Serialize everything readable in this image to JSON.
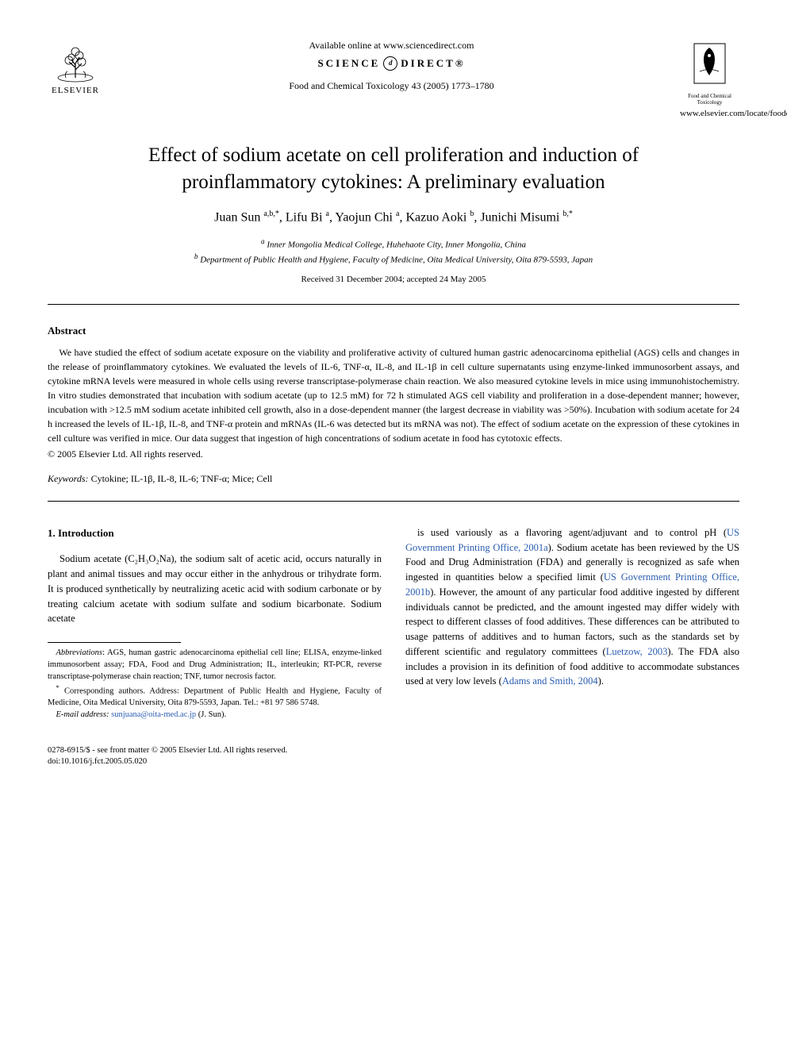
{
  "header": {
    "publisher": "ELSEVIER",
    "available_online": "Available online at www.sciencedirect.com",
    "science_direct_left": "SCIENCE",
    "science_direct_right": "DIRECT®",
    "citation": "Food and Chemical Toxicology 43 (2005) 1773–1780",
    "journal_small_name": "Food and Chemical Toxicology",
    "journal_url": "www.elsevier.com/locate/foodchemtox"
  },
  "title": "Effect of sodium acetate on cell proliferation and induction of proinflammatory cytokines: A preliminary evaluation",
  "authors_html": "Juan Sun <sup>a,b,*</sup>, Lifu Bi <sup>a</sup>, Yaojun Chi <sup>a</sup>, Kazuo Aoki <sup>b</sup>, Junichi Misumi <sup>b,*</sup>",
  "affiliations": {
    "a": "Inner Mongolia Medical College, Huhehaote City, Inner Mongolia, China",
    "b": "Department of Public Health and Hygiene, Faculty of Medicine, Oita Medical University, Oita 879-5593, Japan"
  },
  "dates": "Received 31 December 2004; accepted 24 May 2005",
  "abstract": {
    "heading": "Abstract",
    "text": "We have studied the effect of sodium acetate exposure on the viability and proliferative activity of cultured human gastric adenocarcinoma epithelial (AGS) cells and changes in the release of proinflammatory cytokines. We evaluated the levels of IL-6, TNF-α, IL-8, and IL-1β in cell culture supernatants using enzyme-linked immunosorbent assays, and cytokine mRNA levels were measured in whole cells using reverse transcriptase-polymerase chain reaction. We also measured cytokine levels in mice using immunohistochemistry. In vitro studies demonstrated that incubation with sodium acetate (up to 12.5 mM) for 72 h stimulated AGS cell viability and proliferation in a dose-dependent manner; however, incubation with >12.5 mM sodium acetate inhibited cell growth, also in a dose-dependent manner (the largest decrease in viability was >50%). Incubation with sodium acetate for 24 h increased the levels of IL-1β, IL-8, and TNF-α protein and mRNAs (IL-6 was detected but its mRNA was not). The effect of sodium acetate on the expression of these cytokines in cell culture was verified in mice. Our data suggest that ingestion of high concentrations of sodium acetate in food has cytotoxic effects.",
    "copyright": "© 2005 Elsevier Ltd. All rights reserved."
  },
  "keywords": {
    "label": "Keywords:",
    "text": "Cytokine; IL-1β, IL-8, IL-6; TNF-α; Mice; Cell"
  },
  "introduction": {
    "heading": "1. Introduction",
    "left_para": "Sodium acetate (C₂H₃O₂Na), the sodium salt of acetic acid, occurs naturally in plant and animal tissues and may occur either in the anhydrous or trihydrate form. It is produced synthetically by neutralizing acetic acid with sodium carbonate or by treating calcium acetate with sodium sulfate and sodium bicarbonate. Sodium acetate",
    "right_para_parts": [
      "is used variously as a flavoring agent/adjuvant and to control pH (",
      "US Government Printing Office, 2001a",
      "). Sodium acetate has been reviewed by the US Food and Drug Administration (FDA) and generally is recognized as safe when ingested in quantities below a specified limit (",
      "US Government Printing Office, 2001b",
      "). However, the amount of any particular food additive ingested by different individuals cannot be predicted, and the amount ingested may differ widely with respect to different classes of food additives. These differences can be attributed to usage patterns of additives and to human factors, such as the standards set by different scientific and regulatory committees (",
      "Luetzow, 2003",
      "). The FDA also includes a provision in its definition of food additive to accommodate substances used at very low levels (",
      "Adams and Smith, 2004",
      ")."
    ]
  },
  "footnotes": {
    "abbrev_label": "Abbreviations",
    "abbrev_text": ": AGS, human gastric adenocarcinoma epithelial cell line; ELISA, enzyme-linked immunosorbent assay; FDA, Food and Drug Administration; IL, interleukin; RT-PCR, reverse transcriptase-polymerase chain reaction; TNF, tumor necrosis factor.",
    "corresponding": "Corresponding authors. Address: Department of Public Health and Hygiene, Faculty of Medicine, Oita Medical University, Oita 879-5593, Japan. Tel.: +81 97 586 5748.",
    "email_label": "E-mail address:",
    "email": "sunjuana@oita-med.ac.jp",
    "email_author": "(J. Sun)."
  },
  "bottom": {
    "issn": "0278-6915/$ - see front matter © 2005 Elsevier Ltd. All rights reserved.",
    "doi": "doi:10.1016/j.fct.2005.05.020"
  },
  "colors": {
    "text": "#000000",
    "background": "#ffffff",
    "link": "#2a5db0"
  },
  "typography": {
    "title_fontsize": 25,
    "body_fontsize": 12.5,
    "abstract_fontsize": 12,
    "footnote_fontsize": 10.5
  }
}
